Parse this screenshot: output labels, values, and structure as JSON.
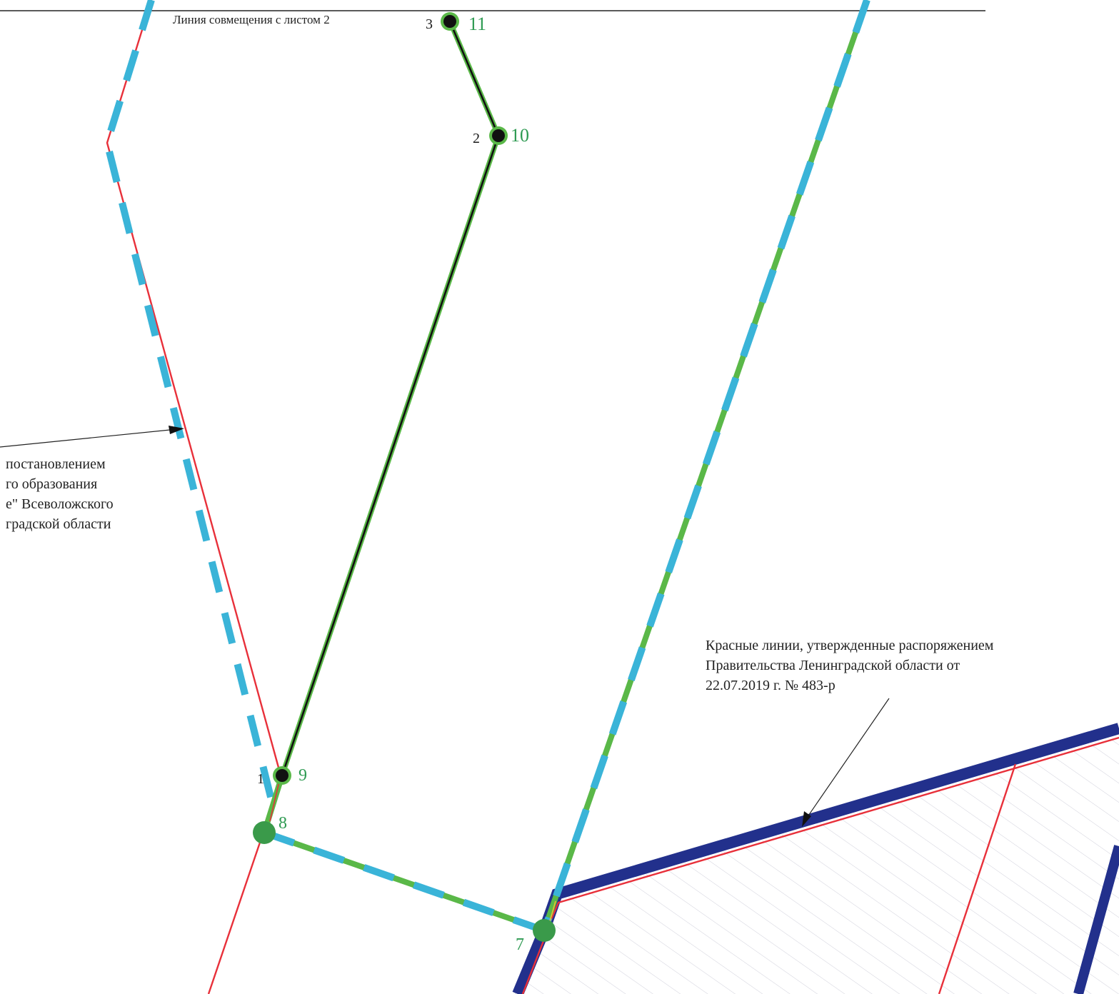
{
  "sheet": {
    "match_line_label": "Линия совмещения с листом 2"
  },
  "annotations": {
    "left_note_lines": [
      "постановлением",
      "го образования",
      "е\" Всеволожского",
      "градской области"
    ],
    "right_note_lines": [
      "Красные линии, утвержденные распоряжением",
      "Правительства Ленинградской области от",
      "22.07.2019 г. № 483-р"
    ]
  },
  "points": {
    "black": [
      "1",
      "2",
      "3"
    ],
    "green": [
      "7",
      "8",
      "9",
      "10",
      "11"
    ]
  },
  "colors": {
    "red_line": "#e8303a",
    "green_boundary": "#5ab848",
    "cyan_dash": "#3ab4d8",
    "blue_border": "#22308c",
    "black_line": "#111111",
    "point_green": "#3a9a4a",
    "label_green": "#2e9a52",
    "hatch": "#b8b8c8"
  }
}
